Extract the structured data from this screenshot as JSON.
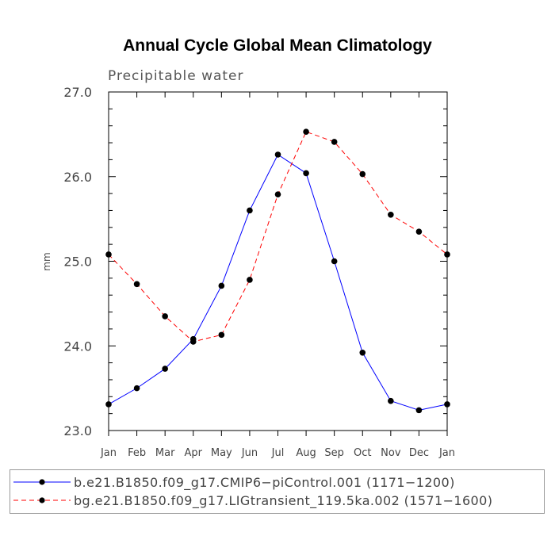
{
  "title": "Annual Cycle Global Mean Climatology",
  "subtitle": "Precipitable water",
  "chart_data": {
    "type": "line",
    "title": "Annual Cycle Global Mean Climatology",
    "subtitle": "Precipitable water",
    "xlabel": "",
    "ylabel": "mm",
    "categories": [
      "Jan",
      "Feb",
      "Mar",
      "Apr",
      "May",
      "Jun",
      "Jul",
      "Aug",
      "Sep",
      "Oct",
      "Nov",
      "Dec",
      "Jan"
    ],
    "ylim": [
      23.0,
      27.0
    ],
    "yticks": [
      "23.0",
      "24.0",
      "25.0",
      "26.0",
      "27.0"
    ],
    "series": [
      {
        "name": "b.e21.B1850.f09_g17.CMIP6-piControl.001 (1171-1200)",
        "color": "#0000ff",
        "dash": "solid",
        "values": [
          23.31,
          23.5,
          23.73,
          24.08,
          24.71,
          25.6,
          26.26,
          26.04,
          25.0,
          23.92,
          23.35,
          23.24,
          23.31
        ]
      },
      {
        "name": "bg.e21.B1850.f09_g17.LIGtransient_119.5ka.002 (1571-1600)",
        "color": "#ff0000",
        "dash": "dashed",
        "values": [
          25.08,
          24.73,
          24.35,
          24.05,
          24.13,
          24.78,
          25.79,
          26.53,
          26.41,
          26.03,
          25.55,
          25.35,
          25.08
        ]
      }
    ],
    "legend": "bottom"
  },
  "legend": {
    "items": [
      {
        "label": "b.e21.B1850.f09_g17.CMIP6−piControl.001 (1171−1200)"
      },
      {
        "label": "bg.e21.B1850.f09_g17.LIGtransient_119.5ka.002 (1571−1600)"
      }
    ]
  }
}
